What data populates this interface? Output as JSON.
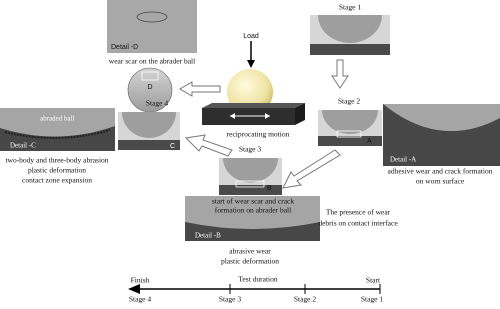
{
  "detail_d": {
    "label": "Detail -D",
    "caption": "wear scar on the abrader ball",
    "marker": "D"
  },
  "center": {
    "load": "Load",
    "motion": "reciprocating motion"
  },
  "stage1": {
    "title": "Stage 1"
  },
  "stage2": {
    "title": "Stage 2",
    "marker": "A",
    "detail": "Detail -A",
    "caption": [
      "adhesive wear and crack formation",
      "on worn surface"
    ]
  },
  "stage3": {
    "title": "Stage 3",
    "marker": "B",
    "caption": [
      "start of wear scar and  crack",
      "formation on abrader ball"
    ],
    "detail": "Detail -B",
    "result": [
      "abrasive wear",
      "plastic deformation"
    ],
    "side_note": [
      "The presence of wear",
      "debris on contact interface"
    ]
  },
  "stage4": {
    "title": "Stage 4",
    "marker": "C",
    "ball_label": "abraded ball",
    "detail": "Detail -C",
    "caption": [
      "two-body and three-body abrasion",
      "plastic deformation",
      "contact zone expansion"
    ]
  },
  "timeline": {
    "finish": "Finish",
    "label": "Test duration",
    "start": "Start",
    "stages": [
      "Stage 4",
      "Stage 3",
      "Stage 2",
      "Stage 1"
    ]
  }
}
